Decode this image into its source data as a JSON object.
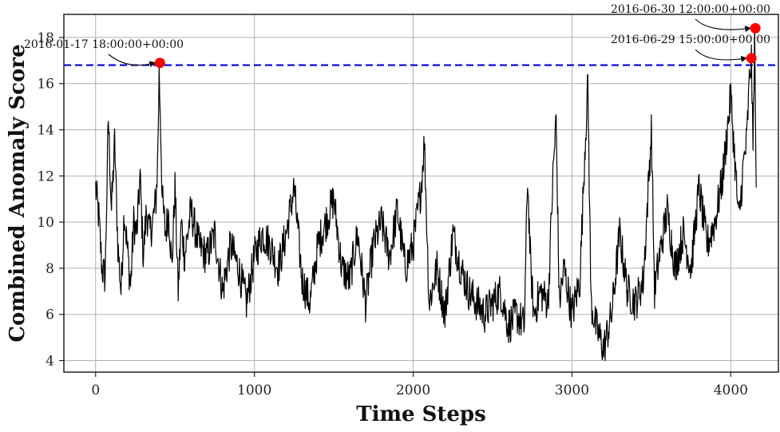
{
  "chart_data": {
    "type": "line",
    "title": "",
    "xlabel": "Time Steps",
    "ylabel": "Combined Anomaly Score",
    "xlim": [
      -200,
      4300
    ],
    "ylim": [
      3.5,
      19
    ],
    "x_ticks": [
      0,
      1000,
      2000,
      3000,
      4000
    ],
    "y_ticks": [
      4,
      6,
      8,
      10,
      12,
      14,
      16,
      18
    ],
    "x_tick_labels": [
      "0",
      "1000",
      "2000",
      "3000",
      "4000"
    ],
    "y_tick_labels": [
      "4",
      "6",
      "8",
      "10",
      "12",
      "14",
      "16",
      "18"
    ],
    "grid": true,
    "threshold": 16.8,
    "series": [
      {
        "x": [
          0,
          20,
          40,
          60,
          80,
          100,
          120,
          140,
          160,
          180,
          200,
          220,
          240,
          260,
          280,
          300,
          320,
          340,
          360,
          380,
          390,
          400,
          410,
          420,
          440,
          460,
          480,
          500,
          520,
          540,
          560,
          580,
          600,
          650,
          700,
          750,
          800,
          850,
          900,
          950,
          1000,
          1050,
          1100,
          1150,
          1200,
          1250,
          1300,
          1350,
          1400,
          1450,
          1500,
          1550,
          1600,
          1650,
          1700,
          1750,
          1800,
          1850,
          1900,
          1950,
          2000,
          2050,
          2070,
          2100,
          2150,
          2200,
          2250,
          2300,
          2350,
          2400,
          2450,
          2500,
          2550,
          2600,
          2650,
          2700,
          2720,
          2740,
          2760,
          2800,
          2850,
          2880,
          2900,
          2920,
          2950,
          3000,
          3050,
          3080,
          3100,
          3120,
          3150,
          3200,
          3250,
          3300,
          3350,
          3400,
          3450,
          3500,
          3520,
          3550,
          3600,
          3650,
          3700,
          3750,
          3800,
          3850,
          3900,
          3950,
          4000,
          4050,
          4080,
          4100,
          4120,
          4130,
          4140,
          4150,
          4160
        ],
        "y": [
          11.5,
          10.2,
          8.0,
          7.6,
          14.5,
          10.5,
          13.5,
          9.0,
          7.0,
          10.5,
          8.8,
          7.2,
          10.0,
          9.5,
          12.0,
          8.5,
          10.5,
          9.5,
          10.0,
          11.0,
          12.5,
          16.5,
          14.0,
          11.0,
          9.5,
          10.5,
          8.0,
          11.5,
          7.0,
          10.0,
          8.5,
          9.5,
          10.5,
          9.0,
          8.5,
          9.5,
          7.0,
          9.0,
          8.0,
          6.5,
          8.5,
          9.5,
          9.0,
          8.0,
          9.5,
          11.5,
          7.5,
          6.5,
          9.0,
          10.0,
          11.0,
          8.0,
          7.5,
          9.5,
          6.5,
          9.0,
          10.0,
          8.5,
          10.5,
          8.0,
          9.0,
          11.5,
          13.5,
          6.5,
          8.0,
          6.0,
          9.5,
          8.0,
          7.0,
          6.5,
          6.0,
          6.5,
          7.0,
          5.5,
          6.0,
          5.5,
          12.0,
          8.0,
          6.0,
          7.0,
          6.5,
          12.0,
          14.5,
          6.5,
          8.0,
          6.0,
          7.5,
          13.0,
          16.0,
          6.5,
          5.5,
          4.5,
          6.0,
          9.5,
          7.0,
          6.5,
          7.5,
          14.0,
          7.0,
          8.5,
          10.5,
          8.0,
          9.5,
          8.0,
          11.5,
          9.0,
          10.0,
          12.0,
          15.5,
          10.0,
          12.5,
          13.5,
          16.5,
          17.0,
          13.0,
          18.3,
          11.5
        ]
      }
    ],
    "anomalies": [
      {
        "x": 405,
        "y": 16.9,
        "label": "2016-01-17 18:00:00+00:00"
      },
      {
        "x": 4130,
        "y": 17.1,
        "label": "2016-06-29 15:00:00+00:00"
      },
      {
        "x": 4155,
        "y": 18.4,
        "label": "2016-06-30 12:00:00+00:00"
      }
    ],
    "colors": {
      "line": "#000000",
      "threshold": "#0000dd",
      "anomaly": "#ff0000",
      "grid": "#b0b0b0",
      "frame": "#222222"
    }
  }
}
